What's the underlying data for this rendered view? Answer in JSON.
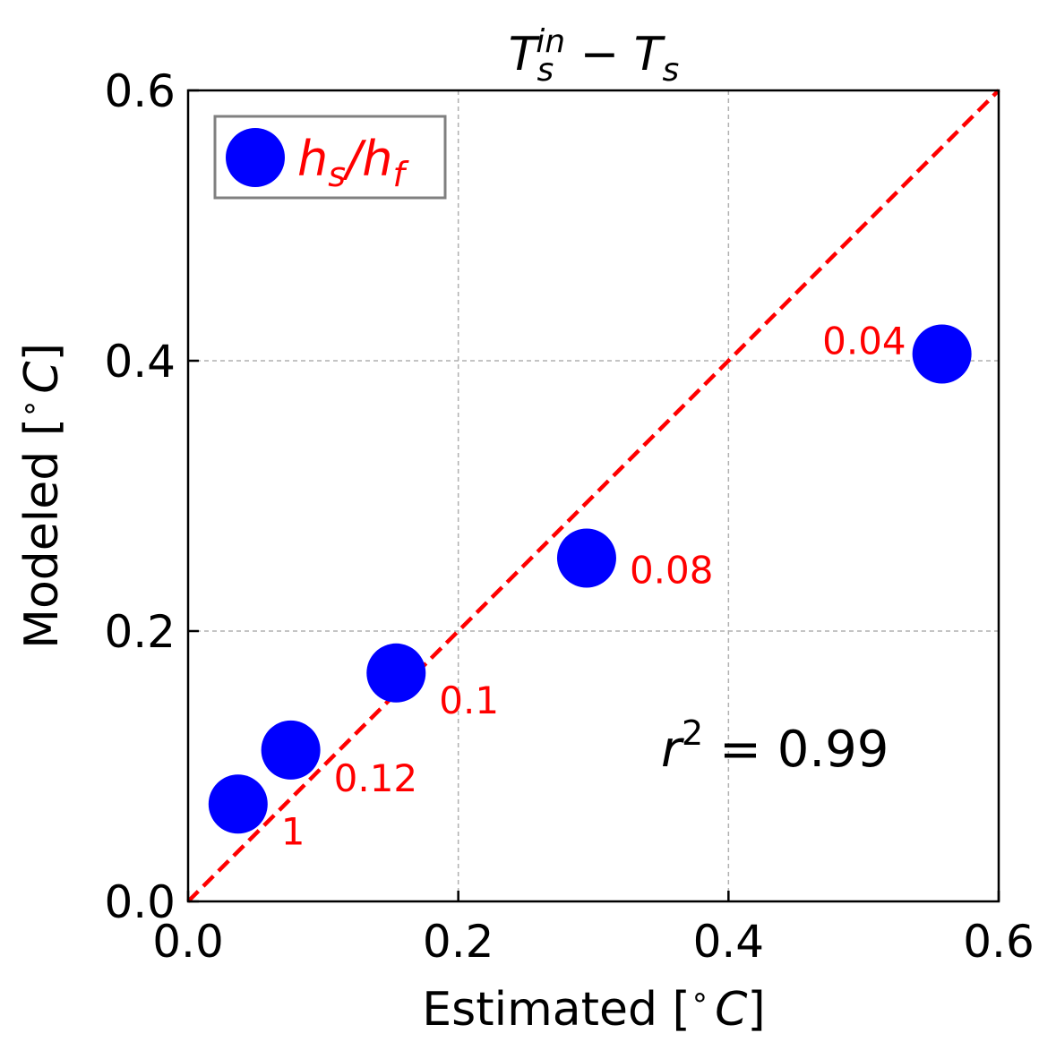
{
  "chart_data": {
    "type": "scatter",
    "title": "T_s^in − T_s",
    "title_parts": {
      "base1": "T",
      "sub1": "s",
      "sup1": "in",
      "minus": " − ",
      "base2": "T",
      "sub2": "s"
    },
    "xlabel": "Estimated [$^\\circ C$]",
    "xlabel_parts": {
      "text": "Estimated [",
      "deg": "∘",
      "unit": "C",
      "close": "]"
    },
    "ylabel": "Modeled [$^\\circ C$]",
    "ylabel_parts": {
      "text": "Modeled [",
      "deg": "∘",
      "unit": "C",
      "close": "]"
    },
    "xlim": [
      0,
      0.6
    ],
    "ylim": [
      0,
      0.6
    ],
    "xticks": [
      "0.0",
      "0.2",
      "0.4",
      "0.6"
    ],
    "yticks": [
      "0.0",
      "0.2",
      "0.4",
      "0.6"
    ],
    "grid": true,
    "legend": {
      "placement": "top-left",
      "label": "h_s/h_f",
      "parts": {
        "h1": "h",
        "s": "s",
        "slash": "/",
        "h2": "h",
        "f": "f"
      }
    },
    "series": [
      {
        "name": "h_s/h_f",
        "color": "#0000ff",
        "x": [
          0.037,
          0.076,
          0.154,
          0.295,
          0.558
        ],
        "y": [
          0.072,
          0.112,
          0.169,
          0.254,
          0.405
        ],
        "labels": [
          "1",
          "0.12",
          "0.1",
          "0.08",
          "0.04"
        ]
      }
    ],
    "reference_line": {
      "type": "1:1",
      "color": "#ff0000",
      "style": "dashed",
      "from": [
        0,
        0
      ],
      "to": [
        0.6,
        0.6
      ]
    },
    "annotation": {
      "text": "r^2 = 0.99",
      "parts": {
        "r": "r",
        "sup": "2",
        "rest": " = 0.99"
      }
    }
  }
}
